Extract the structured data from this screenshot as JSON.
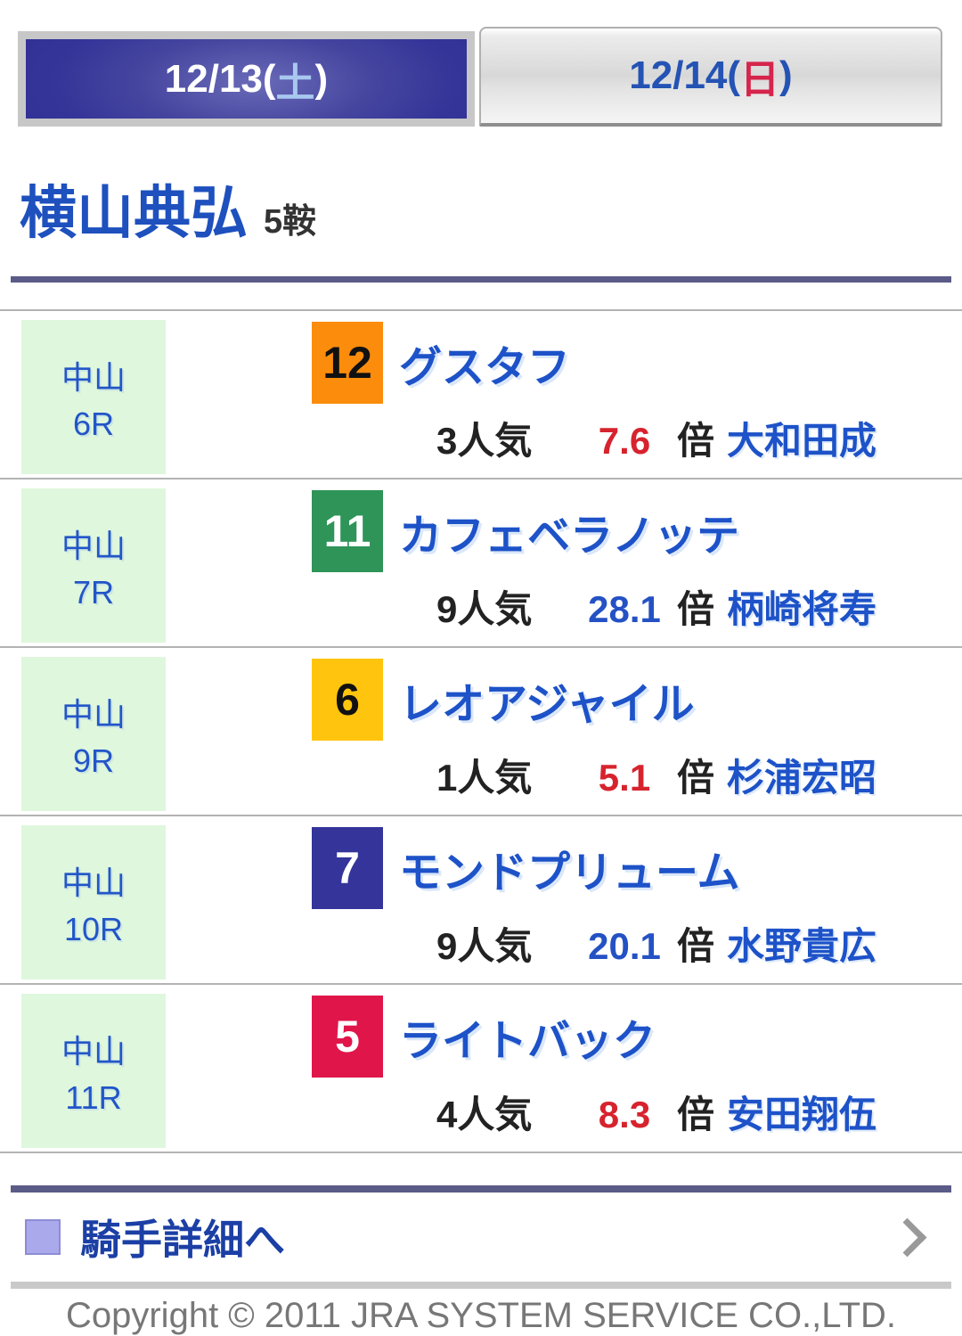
{
  "tabs": {
    "saturday": {
      "prefix": "12/13(",
      "day": "土",
      "suffix": ")",
      "active": true
    },
    "sunday": {
      "prefix": "12/14(",
      "day": "日",
      "suffix": ")",
      "active": false
    }
  },
  "header": {
    "jockey_name": "横山典弘",
    "ride_count": "5鞍"
  },
  "races": [
    {
      "track": "中山",
      "race_no": "6R",
      "horse_number": "12",
      "bracket_color": "#FB8C0C",
      "number_color": "#111111",
      "horse_name": "グスタフ",
      "popularity": "3人気",
      "odds": "7.6",
      "odds_color": "#D7232E",
      "odds_unit": "倍",
      "jockey": "大和田成"
    },
    {
      "track": "中山",
      "race_no": "7R",
      "horse_number": "11",
      "bracket_color": "#2E9458",
      "number_color": "#FFFFFF",
      "horse_name": "カフェベラノッテ",
      "popularity": "9人気",
      "odds": "28.1",
      "odds_color": "#2451C4",
      "odds_unit": "倍",
      "jockey": "柄崎将寿"
    },
    {
      "track": "中山",
      "race_no": "9R",
      "horse_number": "6",
      "bracket_color": "#FFC40D",
      "number_color": "#111111",
      "horse_name": "レオアジャイル",
      "popularity": "1人気",
      "odds": "5.1",
      "odds_color": "#D7232E",
      "odds_unit": "倍",
      "jockey": "杉浦宏昭"
    },
    {
      "track": "中山",
      "race_no": "10R",
      "horse_number": "7",
      "bracket_color": "#34349B",
      "number_color": "#FFFFFF",
      "horse_name": "モンドプリューム",
      "popularity": "9人気",
      "odds": "20.1",
      "odds_color": "#2451C4",
      "odds_unit": "倍",
      "jockey": "水野貴広"
    },
    {
      "track": "中山",
      "race_no": "11R",
      "horse_number": "5",
      "bracket_color": "#E0164B",
      "number_color": "#FFFFFF",
      "horse_name": "ライトバック",
      "popularity": "4人気",
      "odds": "8.3",
      "odds_color": "#D7232E",
      "odds_unit": "倍",
      "jockey": "安田翔伍"
    }
  ],
  "detail_link": {
    "label": "騎手詳細へ",
    "bullet_color": "#A9A9EC"
  },
  "footer": {
    "copyright": "Copyright © 2011 JRA SYSTEM SERVICE CO.,LTD."
  },
  "theme": {
    "active_tab_navy": "#343499",
    "link_blue": "#1D52C8",
    "track_cell_green": "#DFF7DD",
    "rule_slate": "#5B5B88",
    "separator_gray": "#B3B3B3"
  }
}
